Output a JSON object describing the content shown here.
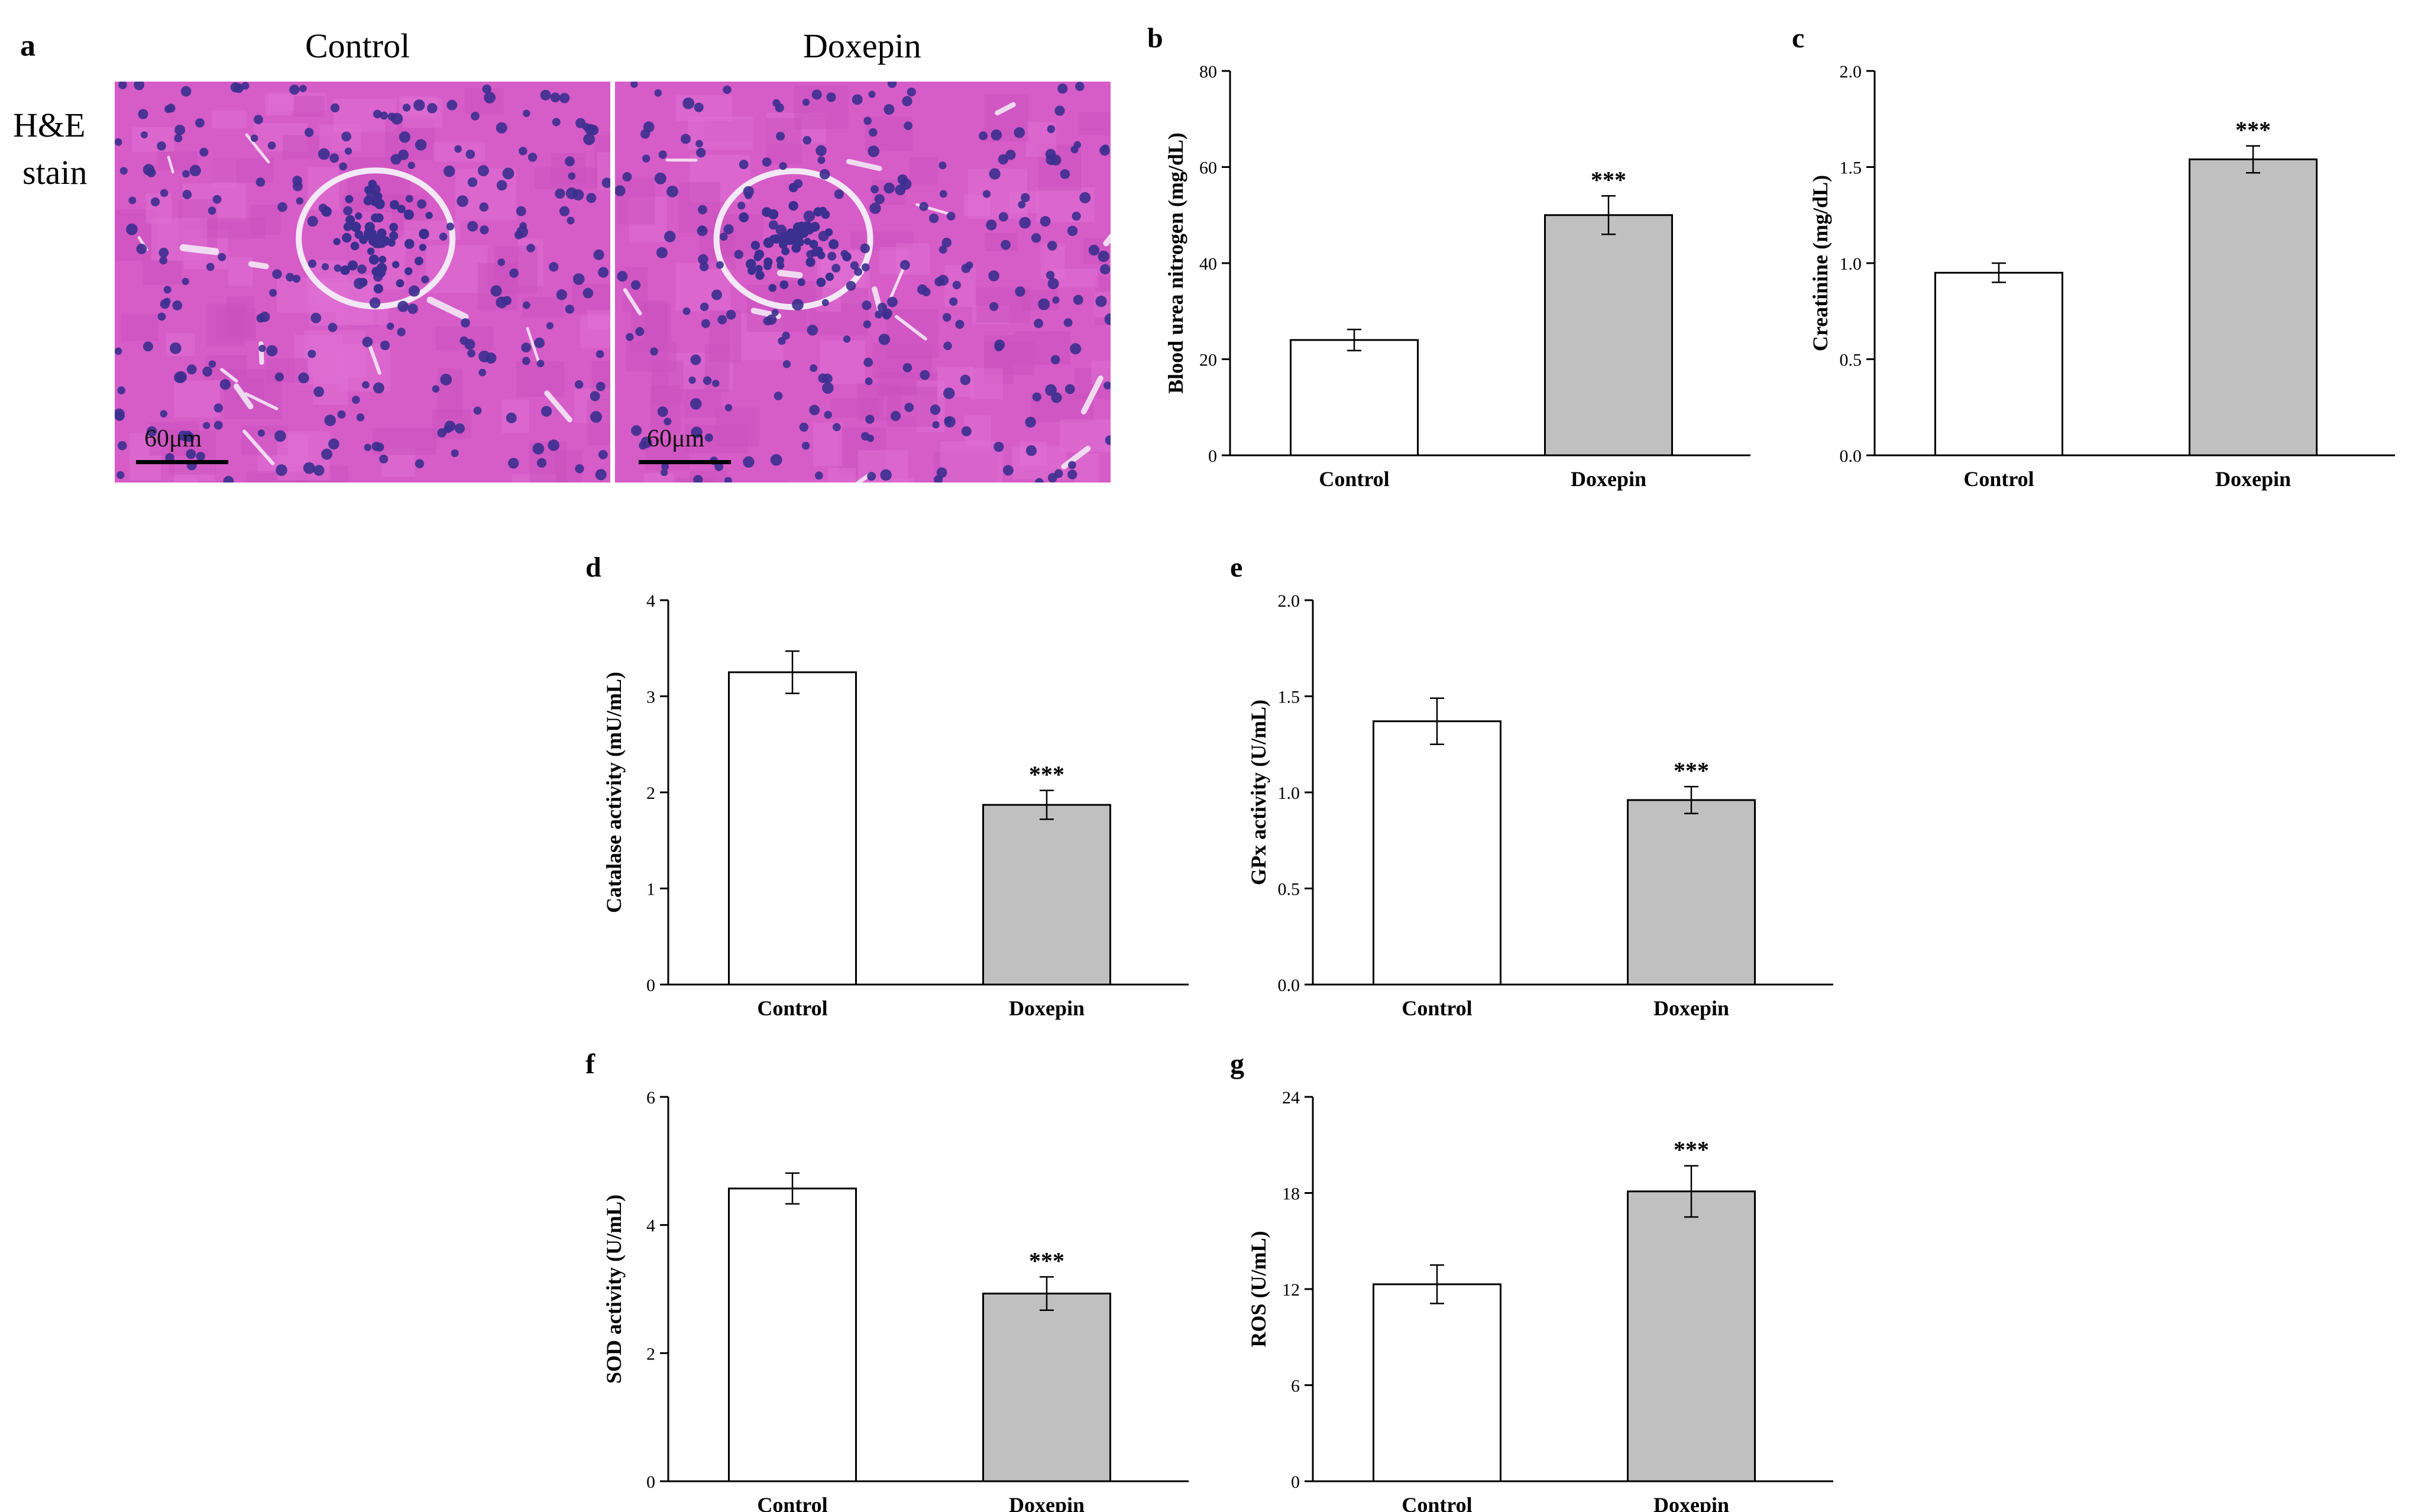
{
  "panel_a": {
    "letter": "a",
    "stain_line1": "H&E",
    "stain_line2": "stain",
    "col_control": "Control",
    "col_doxepin": "Doxepin",
    "scale_bar_control": "60μm",
    "scale_bar_doxepin": "60μm",
    "colors": {
      "tissue": "#d65cc8",
      "nuclei": "#3b2f8f",
      "lumen": "#f3e8f5"
    }
  },
  "colors": {
    "control_bar": "#ffffff",
    "doxepin_bar": "#c0c0c0",
    "axis": "#000000"
  },
  "chart_data": [
    {
      "id": "b",
      "letter": "b",
      "type": "bar",
      "categories": [
        "Control",
        "Doxepin"
      ],
      "values": [
        24,
        50
      ],
      "errors": [
        2.2,
        4
      ],
      "annotations": [
        "",
        "***"
      ],
      "ylabel": "Blood urea nitrogen (mg/dL)",
      "ylim": [
        0,
        80
      ],
      "yticks": [
        "0",
        "20",
        "40",
        "60",
        "80"
      ]
    },
    {
      "id": "c",
      "letter": "c",
      "type": "bar",
      "categories": [
        "Control",
        "Doxepin"
      ],
      "values": [
        0.95,
        1.54
      ],
      "errors": [
        0.05,
        0.07
      ],
      "annotations": [
        "",
        "***"
      ],
      "ylabel": "Creatinine (mg/dL)",
      "ylim": [
        0,
        2
      ],
      "yticks": [
        "0.0",
        "0.5",
        "1.0",
        "1.5",
        "2.0"
      ]
    },
    {
      "id": "d",
      "letter": "d",
      "type": "bar",
      "categories": [
        "Control",
        "Doxepin"
      ],
      "values": [
        3.25,
        1.87
      ],
      "errors": [
        0.22,
        0.15
      ],
      "annotations": [
        "",
        "***"
      ],
      "ylabel": "Catalase activity (mU/mL)",
      "ylim": [
        0,
        4
      ],
      "yticks": [
        "0",
        "1",
        "2",
        "3",
        "4"
      ]
    },
    {
      "id": "e",
      "letter": "e",
      "type": "bar",
      "categories": [
        "Control",
        "Doxepin"
      ],
      "values": [
        1.37,
        0.96
      ],
      "errors": [
        0.12,
        0.07
      ],
      "annotations": [
        "",
        "***"
      ],
      "ylabel": "GPx activity (U/mL)",
      "ylim": [
        0,
        2
      ],
      "yticks": [
        "0.0",
        "0.5",
        "1.0",
        "1.5",
        "2.0"
      ]
    },
    {
      "id": "f",
      "letter": "f",
      "type": "bar",
      "categories": [
        "Control",
        "Doxepin"
      ],
      "values": [
        4.57,
        2.93
      ],
      "errors": [
        0.24,
        0.26
      ],
      "annotations": [
        "",
        "***"
      ],
      "ylabel": "SOD activity (U/mL)",
      "ylim": [
        0,
        6
      ],
      "yticks": [
        "0",
        "2",
        "4",
        "6"
      ]
    },
    {
      "id": "g",
      "letter": "g",
      "type": "bar",
      "categories": [
        "Control",
        "Doxepin"
      ],
      "values": [
        12.3,
        18.1
      ],
      "errors": [
        1.2,
        1.6
      ],
      "annotations": [
        "",
        "***"
      ],
      "ylabel": "ROS (U/mL)",
      "ylim": [
        0,
        24
      ],
      "yticks": [
        "0",
        "6",
        "12",
        "18",
        "24"
      ]
    }
  ]
}
